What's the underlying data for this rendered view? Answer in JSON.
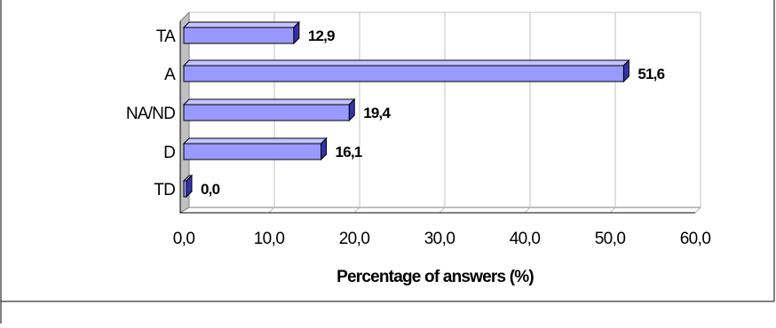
{
  "chart_data": {
    "type": "bar",
    "orientation": "horizontal",
    "style": "3d",
    "categories": [
      "TA",
      "A",
      "NA/ND",
      "D",
      "TD"
    ],
    "values": [
      12.9,
      51.6,
      19.4,
      16.1,
      0.0
    ],
    "value_labels": [
      "12,9",
      "51,6",
      "19,4",
      "16,1",
      "0,0"
    ],
    "x_ticks": [
      "0,0",
      "10,0",
      "20,0",
      "30,0",
      "40,0",
      "50,0",
      "60,0"
    ],
    "xlim": [
      0,
      60
    ],
    "xlabel": "Percentage of answers (%)",
    "ylabel": "",
    "title": "",
    "grid": "vertical",
    "legend": "none",
    "colors": {
      "bar_face": "#9999ff",
      "bar_top": "#c4c4ff",
      "bar_side": "#3333aa",
      "wall": "#c0c0c0",
      "gridline": "#c0c0c0"
    }
  }
}
